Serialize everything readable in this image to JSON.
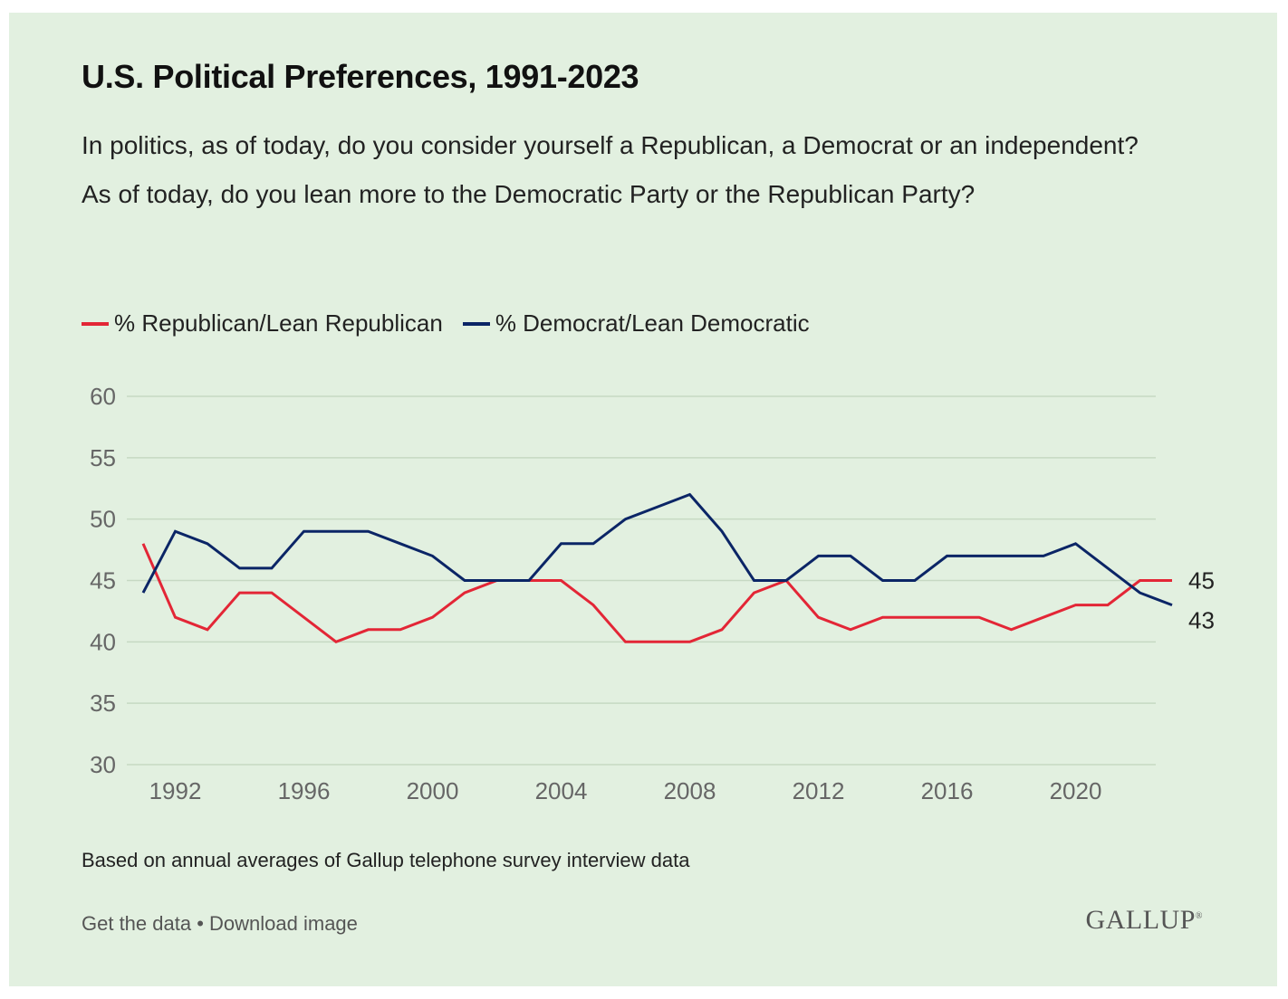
{
  "header": {
    "title": "U.S. Political Preferences, 1991-2023",
    "question_1": "In politics, as of today, do you consider yourself a Republican, a Democrat or an independent?",
    "question_2": "As of today, do you lean more to the Democratic Party or the Republican Party?"
  },
  "legend": {
    "republican_label": "% Republican/Lean Republican",
    "democrat_label": "% Democrat/Lean Democratic"
  },
  "colors": {
    "republican": "#e32636",
    "democrat": "#0b2566",
    "grid": "#c6d9c3",
    "tick": "#666666",
    "background": "#e2f0e0"
  },
  "chart_data": {
    "type": "line",
    "x": [
      1991,
      1992,
      1993,
      1994,
      1995,
      1996,
      1997,
      1998,
      1999,
      2000,
      2001,
      2002,
      2003,
      2004,
      2005,
      2006,
      2007,
      2008,
      2009,
      2010,
      2011,
      2012,
      2013,
      2014,
      2015,
      2016,
      2017,
      2018,
      2019,
      2020,
      2021,
      2022,
      2023
    ],
    "series": [
      {
        "name": "% Republican/Lean Republican",
        "color": "#e32636",
        "values": [
          48,
          42,
          41,
          44,
          44,
          42,
          40,
          41,
          41,
          42,
          44,
          45,
          45,
          45,
          43,
          40,
          40,
          40,
          41,
          44,
          45,
          42,
          41,
          42,
          42,
          42,
          42,
          41,
          42,
          43,
          43,
          45,
          45
        ],
        "end_label": "45"
      },
      {
        "name": "% Democrat/Lean Democratic",
        "color": "#0b2566",
        "values": [
          44,
          49,
          48,
          46,
          46,
          49,
          49,
          49,
          48,
          47,
          45,
          45,
          45,
          48,
          48,
          50,
          51,
          52,
          49,
          45,
          45,
          47,
          47,
          45,
          45,
          47,
          47,
          47,
          47,
          48,
          46,
          44,
          43
        ],
        "end_label": "43"
      }
    ],
    "ylim": [
      30,
      60
    ],
    "yticks": [
      30,
      35,
      40,
      45,
      50,
      55,
      60
    ],
    "xlim": [
      1991,
      2023
    ],
    "xticks": [
      1992,
      1996,
      2000,
      2004,
      2008,
      2012,
      2016,
      2020
    ],
    "xlabel": "",
    "ylabel": "",
    "grid": true,
    "legend_position": "top-left"
  },
  "footer": {
    "note": "Based on annual averages of Gallup telephone survey interview data",
    "get_data": "Get the data",
    "separator": " • ",
    "download": "Download image",
    "logo": "GALLUP",
    "logo_mark": "®"
  }
}
